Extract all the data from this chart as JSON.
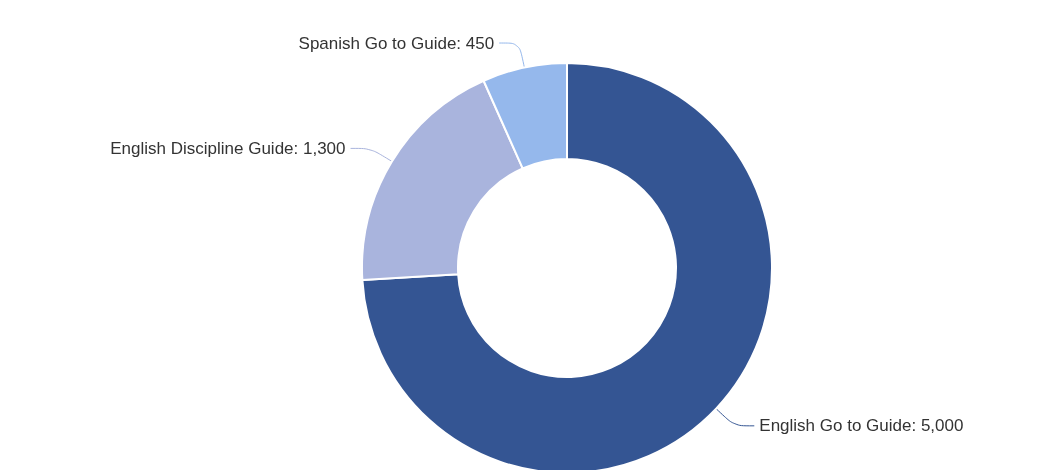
{
  "chart_data": {
    "type": "donut",
    "categories": [
      "English Go to Guide",
      "English Discipline Guide",
      "Spanish Go to Guide"
    ],
    "values": [
      5000,
      1300,
      450
    ],
    "value_labels": [
      "5,000",
      "1,300",
      "450"
    ],
    "colors": [
      "#345593",
      "#a9b4dd",
      "#95b8ec"
    ]
  }
}
